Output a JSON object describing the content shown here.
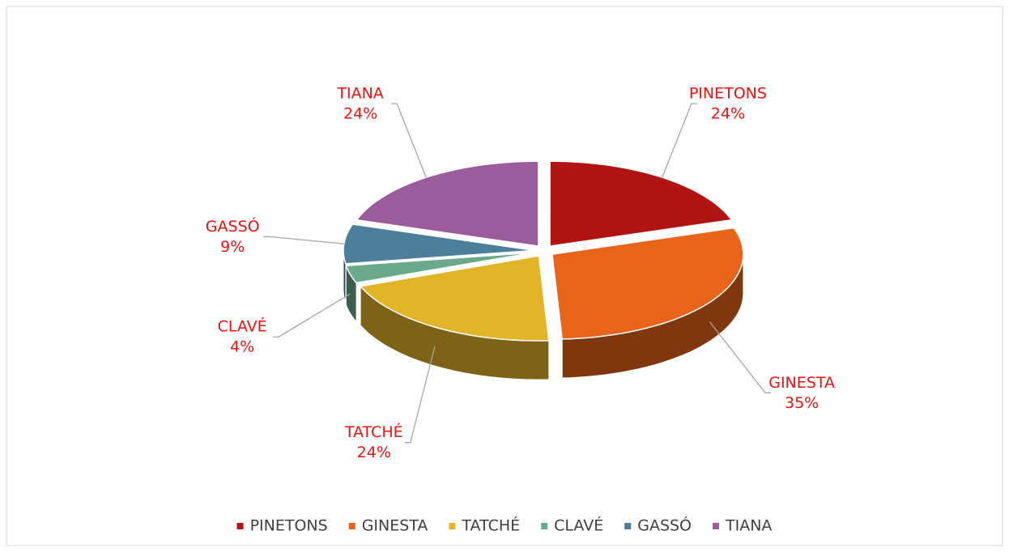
{
  "chart_data": {
    "type": "pie",
    "categories": [
      "PINETONS",
      "GINESTA",
      "TATCHÉ",
      "CLAVÉ",
      "GASSÓ",
      "TIANA"
    ],
    "values": [
      24,
      35,
      24,
      4,
      9,
      24
    ],
    "value_labels": [
      "24%",
      "35%",
      "24%",
      "4%",
      "9%",
      "24%"
    ],
    "colors": [
      "#b01513",
      "#e8641b",
      "#e2b42a",
      "#6aa98b",
      "#4e7f9a",
      "#9b5c9c"
    ],
    "legend": "bottom"
  }
}
